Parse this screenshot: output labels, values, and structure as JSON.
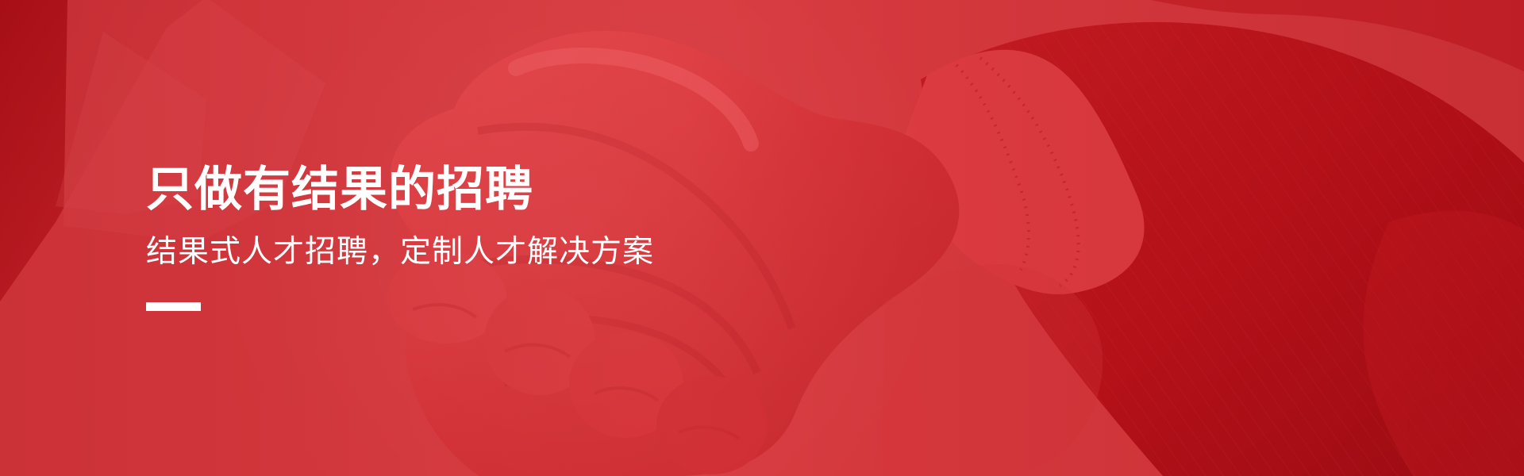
{
  "hero": {
    "title": "只做有结果的招聘",
    "subtitle": "结果式人才招聘，定制人才解决方案"
  },
  "theme": {
    "primary_red": "#d9363c",
    "dark_red": "#b6161d",
    "text_color": "#ffffff"
  },
  "background": {
    "image_subject": "handshake"
  }
}
